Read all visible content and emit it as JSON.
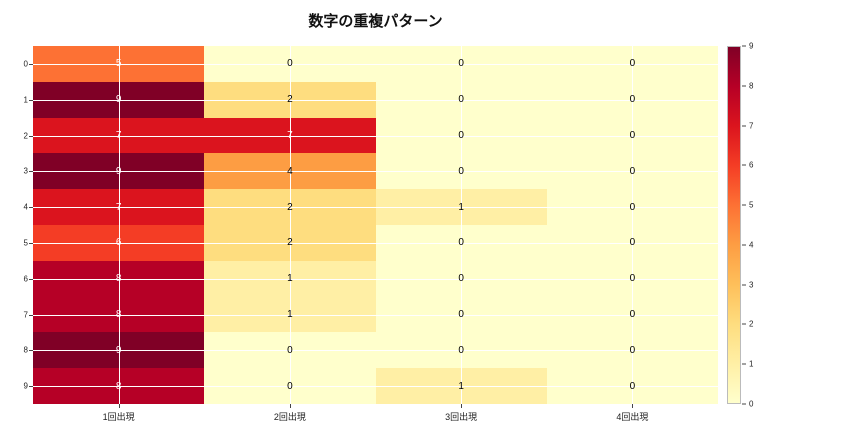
{
  "title": "数字の重複パターン",
  "chart_data": {
    "type": "heatmap",
    "title": "数字の重複パターン",
    "x_tick_labels": [
      "1回出現",
      "2回出現",
      "3回出現",
      "4回出現"
    ],
    "y_tick_labels": [
      "0",
      "1",
      "2",
      "3",
      "4",
      "5",
      "6",
      "7",
      "8",
      "9"
    ],
    "values": [
      [
        5,
        0,
        0,
        0
      ],
      [
        9,
        2,
        0,
        0
      ],
      [
        7,
        7,
        0,
        0
      ],
      [
        9,
        4,
        0,
        0
      ],
      [
        7,
        2,
        1,
        0
      ],
      [
        6,
        2,
        0,
        0
      ],
      [
        8,
        1,
        0,
        0
      ],
      [
        8,
        1,
        0,
        0
      ],
      [
        9,
        0,
        0,
        0
      ],
      [
        8,
        0,
        1,
        0
      ]
    ],
    "vmin": 0,
    "vmax": 9,
    "colormap": "YlOrRd",
    "palette": [
      "#ffffcc",
      "#ffefa5",
      "#fedd7f",
      "#febf5a",
      "#fd9d43",
      "#fd7134",
      "#f43d25",
      "#db141e",
      "#b60026",
      "#800026"
    ],
    "colorbar_ticks": [
      0,
      1,
      2,
      3,
      4,
      5,
      6,
      7,
      8,
      9
    ],
    "annotation_colors": {
      "dark_cells": "#ffffff",
      "light_cells": "#000000"
    },
    "gridline_color": "#ffffff",
    "legend_position": "right-colorbar"
  }
}
